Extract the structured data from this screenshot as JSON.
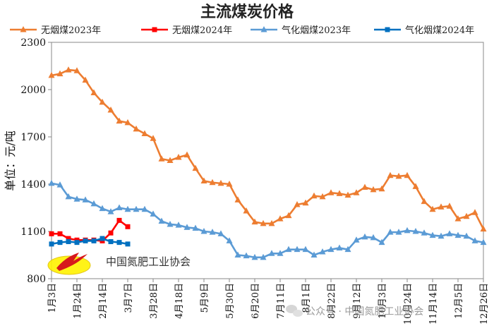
{
  "chart_data": {
    "type": "line",
    "title": "主流煤炭价格",
    "ylabel": "单位：元/吨",
    "xlabel": "",
    "ylim": [
      800,
      2300
    ],
    "yticks": [
      800,
      1100,
      1400,
      1700,
      2000,
      2300
    ],
    "grid": false,
    "legend_position": "top",
    "x_tick_labels": [
      "1月3日",
      "1月24日",
      "2月14日",
      "3月7日",
      "3月28日",
      "4月18日",
      "5月9日",
      "5月30日",
      "6月20日",
      "7月11日",
      "8月1日",
      "8月22日",
      "9月12日",
      "10月3日",
      "10月24日",
      "11月14日",
      "12月5日",
      "12月26日"
    ],
    "x_tick_week_index": [
      0,
      3,
      6,
      9,
      12,
      15,
      18,
      21,
      24,
      27,
      30,
      33,
      36,
      39,
      42,
      45,
      48,
      51
    ],
    "series": [
      {
        "name": "无烟煤2023年",
        "color": "#ED7D31",
        "marker": "triangle",
        "values": [
          2090,
          2100,
          2125,
          2120,
          2060,
          1980,
          1920,
          1870,
          1800,
          1790,
          1750,
          1720,
          1690,
          1560,
          1550,
          1570,
          1585,
          1500,
          1420,
          1410,
          1405,
          1400,
          1300,
          1230,
          1160,
          1150,
          1150,
          1180,
          1200,
          1270,
          1280,
          1325,
          1320,
          1345,
          1340,
          1330,
          1345,
          1380,
          1365,
          1370,
          1455,
          1450,
          1455,
          1385,
          1290,
          1240,
          1255,
          1260,
          1180,
          1195,
          1220,
          1115
        ]
      },
      {
        "name": "无烟煤2024年",
        "color": "#FF0000",
        "marker": "square",
        "values": [
          1085,
          1085,
          1055,
          1045,
          1045,
          1045,
          1040,
          1090,
          1170,
          1130
        ]
      },
      {
        "name": "气化烟煤2023年",
        "color": "#5B9BD5",
        "marker": "triangle",
        "values": [
          1405,
          1395,
          1320,
          1305,
          1300,
          1275,
          1245,
          1225,
          1250,
          1240,
          1240,
          1240,
          1210,
          1165,
          1145,
          1140,
          1125,
          1120,
          1100,
          1095,
          1085,
          1040,
          950,
          945,
          935,
          935,
          960,
          960,
          985,
          985,
          985,
          950,
          970,
          985,
          995,
          985,
          1045,
          1065,
          1060,
          1030,
          1095,
          1095,
          1105,
          1100,
          1090,
          1075,
          1070,
          1085,
          1075,
          1070,
          1040,
          1030
        ]
      },
      {
        "name": "气化烟煤2024年",
        "color": "#0070C0",
        "marker": "square",
        "values": [
          1020,
          1030,
          1035,
          1030,
          1040,
          1040,
          1055,
          1035,
          1030,
          1020
        ]
      }
    ]
  },
  "watermarks": {
    "association": "中国氮肥工业协会",
    "public_account": "公众号 · 中国氮肥工业协会"
  }
}
